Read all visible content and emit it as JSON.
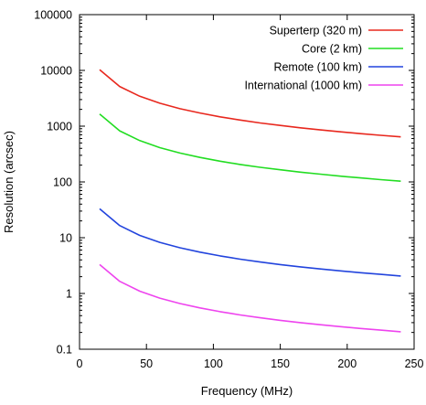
{
  "chart_data": {
    "type": "line",
    "xlabel": "Frequency (MHz)",
    "ylabel": "Resolution (arcsec)",
    "xlim": [
      0,
      250
    ],
    "ylim": [
      0.1,
      100000
    ],
    "yscale": "log",
    "x_ticks": [
      "0",
      "50",
      "100",
      "150",
      "200",
      "250"
    ],
    "y_ticks": [
      "0.1",
      "1",
      "10",
      "100",
      "1000",
      "10000",
      "100000"
    ],
    "grid": false,
    "legend_position": "top-right",
    "x": [
      15,
      30,
      45,
      60,
      75,
      90,
      105,
      120,
      135,
      150,
      165,
      180,
      195,
      210,
      225,
      240
    ],
    "series": [
      {
        "name": "Superterp (320 m)",
        "color": "#e8281e",
        "values": [
          10300,
          5150,
          3430,
          2580,
          2060,
          1720,
          1470,
          1290,
          1140,
          1030,
          935,
          858,
          792,
          735,
          686,
          643
        ]
      },
      {
        "name": "Core (2 km)",
        "color": "#22dd22",
        "values": [
          1650,
          825,
          550,
          412,
          330,
          275,
          236,
          206,
          183,
          165,
          150,
          138,
          127,
          118,
          110,
          103
        ]
      },
      {
        "name": "Remote (100 km)",
        "color": "#2244dd",
        "values": [
          33,
          16.5,
          11,
          8.25,
          6.6,
          5.5,
          4.71,
          4.12,
          3.67,
          3.3,
          3.0,
          2.75,
          2.54,
          2.36,
          2.2,
          2.06
        ]
      },
      {
        "name": "International (1000 km)",
        "color": "#ee44ee",
        "values": [
          3.3,
          1.65,
          1.1,
          0.825,
          0.66,
          0.55,
          0.471,
          0.412,
          0.367,
          0.33,
          0.3,
          0.275,
          0.254,
          0.236,
          0.22,
          0.206
        ]
      }
    ]
  }
}
